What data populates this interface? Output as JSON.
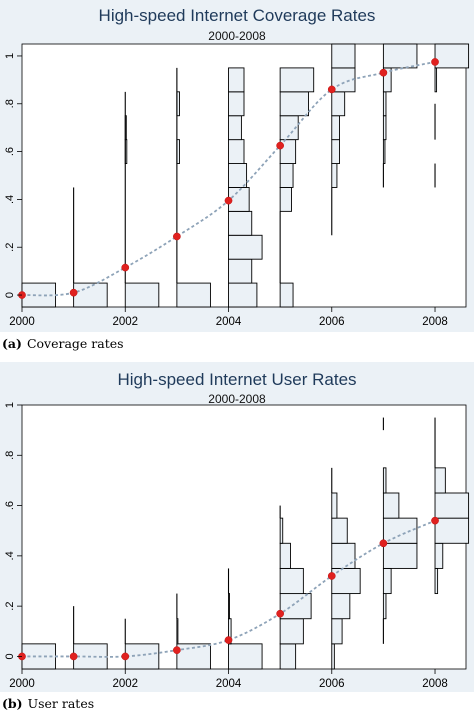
{
  "chart_data": [
    {
      "type": "scatter",
      "title": "High-speed Internet Coverage Rates",
      "subtitle": "2000-2008",
      "caption_letter": "(a)",
      "caption_text": "Coverage rates",
      "x": [
        2000,
        2001,
        2002,
        2003,
        2004,
        2005,
        2006,
        2007,
        2008
      ],
      "xticks": [
        "2000",
        "2002",
        "2004",
        "2006",
        "2008"
      ],
      "yticks": [
        "0",
        ".2",
        ".4",
        ".6",
        ".8",
        "1"
      ],
      "xlim": [
        2000,
        2008.6
      ],
      "ylim": [
        -0.05,
        1.05
      ],
      "grid": false,
      "series": [
        {
          "values": [
            0.0,
            0.01,
            0.115,
            0.245,
            0.395,
            0.625,
            0.86,
            0.93,
            0.975
          ]
        }
      ],
      "distributions": [
        {
          "x": 2000,
          "bins": [
            [
              -0.05,
              0.05,
              0.65
            ]
          ],
          "spikes": []
        },
        {
          "x": 2001,
          "bins": [
            [
              -0.05,
              0.05,
              0.65
            ]
          ],
          "spikes": [
            [
              0.05,
              0.45
            ]
          ]
        },
        {
          "x": 2002,
          "bins": [
            [
              -0.05,
              0.05,
              0.65
            ],
            [
              0.55,
              0.65,
              0.03
            ],
            [
              0.65,
              0.75,
              0.02
            ]
          ],
          "spikes": [
            [
              0.05,
              0.85
            ]
          ]
        },
        {
          "x": 2003,
          "bins": [
            [
              -0.05,
              0.05,
              0.65
            ],
            [
              0.55,
              0.65,
              0.05
            ],
            [
              0.75,
              0.85,
              0.05
            ]
          ],
          "spikes": [
            [
              0.05,
              0.95
            ]
          ]
        },
        {
          "x": 2004,
          "bins": [
            [
              -0.05,
              0.05,
              0.55
            ],
            [
              0.05,
              0.15,
              0.45
            ],
            [
              0.15,
              0.25,
              0.65
            ],
            [
              0.25,
              0.35,
              0.45
            ],
            [
              0.35,
              0.45,
              0.4
            ],
            [
              0.45,
              0.55,
              0.35
            ],
            [
              0.55,
              0.65,
              0.3
            ],
            [
              0.65,
              0.75,
              0.25
            ],
            [
              0.75,
              0.85,
              0.3
            ],
            [
              0.85,
              0.95,
              0.3
            ]
          ],
          "spikes": [
            [
              0.95,
              0.95
            ]
          ]
        },
        {
          "x": 2005,
          "bins": [
            [
              -0.05,
              0.05,
              0.25
            ],
            [
              0.35,
              0.45,
              0.22
            ],
            [
              0.45,
              0.55,
              0.25
            ],
            [
              0.55,
              0.65,
              0.3
            ],
            [
              0.65,
              0.75,
              0.35
            ],
            [
              0.75,
              0.85,
              0.55
            ],
            [
              0.85,
              0.95,
              0.65
            ]
          ],
          "spikes": [
            [
              0.05,
              0.35
            ]
          ]
        },
        {
          "x": 2006,
          "bins": [
            [
              0.45,
              0.55,
              0.1
            ],
            [
              0.55,
              0.65,
              0.15
            ],
            [
              0.65,
              0.75,
              0.15
            ],
            [
              0.75,
              0.85,
              0.25
            ],
            [
              0.85,
              0.95,
              0.45
            ],
            [
              0.95,
              1.05,
              0.45
            ]
          ],
          "spikes": [
            [
              0.25,
              0.45
            ]
          ]
        },
        {
          "x": 2007,
          "bins": [
            [
              0.55,
              0.65,
              0.03
            ],
            [
              0.65,
              0.75,
              0.05
            ],
            [
              0.75,
              0.85,
              0.05
            ],
            [
              0.85,
              0.95,
              0.15
            ],
            [
              0.95,
              1.05,
              0.65
            ]
          ],
          "spikes": [
            [
              0.45,
              0.55
            ]
          ]
        },
        {
          "x": 2008,
          "bins": [
            [
              0.85,
              0.95,
              0.03
            ],
            [
              0.95,
              1.05,
              0.65
            ]
          ],
          "spikes": [
            [
              0.45,
              0.55
            ],
            [
              0.65,
              0.8
            ]
          ]
        }
      ]
    },
    {
      "type": "scatter",
      "title": "High-speed Internet User Rates",
      "subtitle": "2000-2008",
      "caption_letter": "(b)",
      "caption_text": "User rates",
      "x": [
        2000,
        2001,
        2002,
        2003,
        2004,
        2005,
        2006,
        2007,
        2008
      ],
      "xticks": [
        "2000",
        "2002",
        "2004",
        "2006",
        "2008"
      ],
      "yticks": [
        "0",
        ".2",
        ".4",
        ".6",
        ".8",
        "1"
      ],
      "xlim": [
        2000,
        2008.6
      ],
      "ylim": [
        -0.05,
        1.0
      ],
      "grid": false,
      "series": [
        {
          "values": [
            0.0,
            0.0,
            0.0,
            0.025,
            0.065,
            0.17,
            0.32,
            0.45,
            0.54
          ]
        }
      ],
      "distributions": [
        {
          "x": 2000,
          "bins": [
            [
              -0.05,
              0.05,
              0.65
            ]
          ],
          "spikes": []
        },
        {
          "x": 2001,
          "bins": [
            [
              -0.05,
              0.05,
              0.65
            ]
          ],
          "spikes": [
            [
              0.05,
              0.2
            ]
          ]
        },
        {
          "x": 2002,
          "bins": [
            [
              -0.05,
              0.05,
              0.65
            ]
          ],
          "spikes": [
            [
              0.05,
              0.15
            ]
          ]
        },
        {
          "x": 2003,
          "bins": [
            [
              -0.05,
              0.05,
              0.65
            ],
            [
              0.05,
              0.15,
              0.02
            ]
          ],
          "spikes": [
            [
              0.15,
              0.25
            ]
          ]
        },
        {
          "x": 2004,
          "bins": [
            [
              -0.05,
              0.05,
              0.65
            ],
            [
              0.05,
              0.15,
              0.05
            ],
            [
              0.15,
              0.25,
              0.02
            ]
          ],
          "spikes": [
            [
              0.25,
              0.35
            ]
          ]
        },
        {
          "x": 2005,
          "bins": [
            [
              -0.05,
              0.05,
              0.3
            ],
            [
              0.05,
              0.15,
              0.45
            ],
            [
              0.15,
              0.25,
              0.6
            ],
            [
              0.25,
              0.35,
              0.45
            ],
            [
              0.35,
              0.45,
              0.2
            ],
            [
              0.45,
              0.55,
              0.05
            ]
          ],
          "spikes": [
            [
              0.55,
              0.6
            ]
          ]
        },
        {
          "x": 2006,
          "bins": [
            [
              -0.05,
              0.05,
              0.05
            ],
            [
              0.05,
              0.15,
              0.2
            ],
            [
              0.15,
              0.25,
              0.35
            ],
            [
              0.25,
              0.35,
              0.55
            ],
            [
              0.35,
              0.45,
              0.45
            ],
            [
              0.45,
              0.55,
              0.3
            ],
            [
              0.55,
              0.65,
              0.1
            ]
          ],
          "spikes": [
            [
              0.65,
              0.75
            ]
          ]
        },
        {
          "x": 2007,
          "bins": [
            [
              0.15,
              0.25,
              0.05
            ],
            [
              0.25,
              0.35,
              0.15
            ],
            [
              0.35,
              0.45,
              0.65
            ],
            [
              0.45,
              0.55,
              0.65
            ],
            [
              0.55,
              0.65,
              0.3
            ],
            [
              0.65,
              0.75,
              0.05
            ]
          ],
          "spikes": [
            [
              0.05,
              0.15
            ],
            [
              0.9,
              0.95
            ]
          ]
        },
        {
          "x": 2008,
          "bins": [
            [
              0.25,
              0.35,
              0.05
            ],
            [
              0.35,
              0.45,
              0.15
            ],
            [
              0.45,
              0.55,
              0.65
            ],
            [
              0.55,
              0.65,
              0.65
            ],
            [
              0.65,
              0.75,
              0.2
            ]
          ],
          "spikes": [
            [
              0.75,
              0.95
            ]
          ]
        }
      ]
    }
  ]
}
